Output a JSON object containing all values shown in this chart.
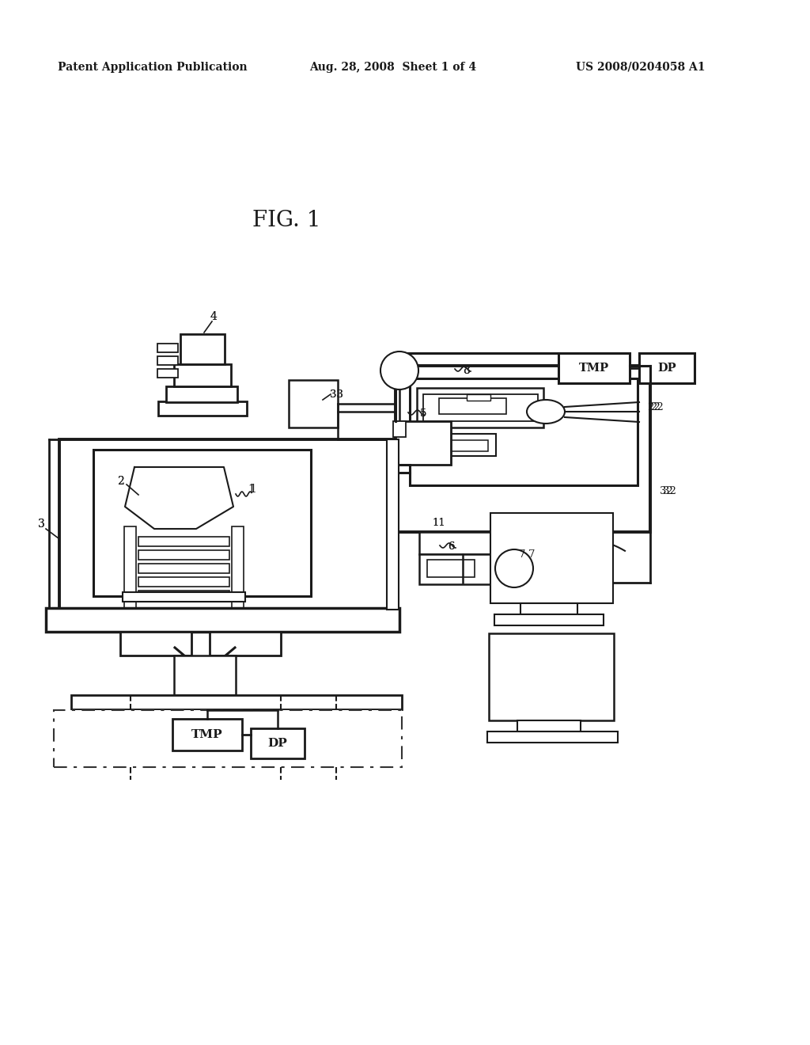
{
  "bg": "#ffffff",
  "lc": "#1a1a1a",
  "header_left": "Patent Application Publication",
  "header_mid": "Aug. 28, 2008  Sheet 1 of 4",
  "header_right": "US 2008/0204058 A1",
  "fig_label": "FIG. 1"
}
